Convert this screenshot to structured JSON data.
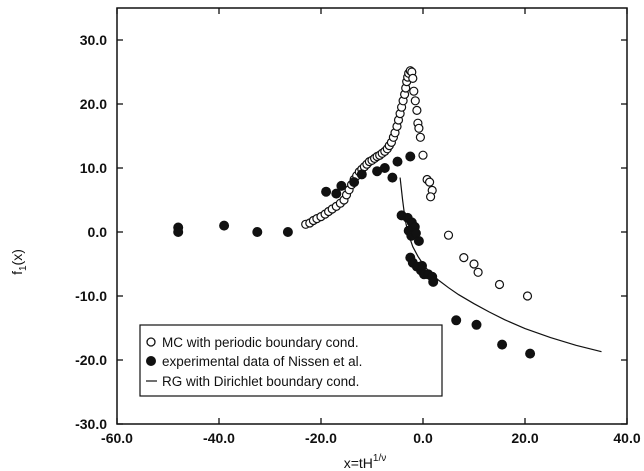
{
  "chart_data": {
    "type": "scatter",
    "xlabel": "x=tH",
    "xlabel_sup": "1/ν",
    "ylabel": "f",
    "ylabel_sub": "1",
    "ylabel_suffix": "(x)",
    "xlim": [
      -60,
      40
    ],
    "ylim": [
      -30,
      35
    ],
    "x_ticks": [
      -60,
      -40,
      -20,
      0,
      20,
      40
    ],
    "x_tick_labels": [
      "-60.0",
      "-40.0",
      "-20.0",
      "0.0",
      "20.0",
      "40.0"
    ],
    "y_ticks": [
      -30,
      -20,
      -10,
      0,
      10,
      20,
      30
    ],
    "y_tick_labels": [
      "-30.0",
      "-20.0",
      "-10.0",
      "0.0",
      "10.0",
      "20.0",
      "30.0"
    ],
    "grid": false,
    "legend_position": "bottom-left",
    "series": [
      {
        "name": "MC with periodic boundary cond.",
        "marker": "open-circle",
        "color": "#111111",
        "points": [
          [
            -23.0,
            1.2
          ],
          [
            -22.2,
            1.4
          ],
          [
            -21.5,
            1.8
          ],
          [
            -20.8,
            2.1
          ],
          [
            -20.0,
            2.4
          ],
          [
            -19.2,
            2.8
          ],
          [
            -18.5,
            3.2
          ],
          [
            -17.8,
            3.6
          ],
          [
            -17.0,
            4.0
          ],
          [
            -16.2,
            4.5
          ],
          [
            -15.5,
            5.0
          ],
          [
            -15.0,
            5.8
          ],
          [
            -14.5,
            6.6
          ],
          [
            -14.0,
            7.4
          ],
          [
            -13.5,
            8.2
          ],
          [
            -13.0,
            8.8
          ],
          [
            -12.5,
            9.4
          ],
          [
            -12.0,
            9.8
          ],
          [
            -11.5,
            10.2
          ],
          [
            -11.0,
            10.6
          ],
          [
            -10.5,
            11.0
          ],
          [
            -10.0,
            11.2
          ],
          [
            -9.5,
            11.5
          ],
          [
            -9.0,
            11.8
          ],
          [
            -8.5,
            12.0
          ],
          [
            -8.0,
            12.3
          ],
          [
            -7.5,
            12.6
          ],
          [
            -7.0,
            13.0
          ],
          [
            -6.6,
            13.5
          ],
          [
            -6.2,
            14.0
          ],
          [
            -5.8,
            14.8
          ],
          [
            -5.5,
            15.5
          ],
          [
            -5.1,
            16.5
          ],
          [
            -4.8,
            17.5
          ],
          [
            -4.5,
            18.5
          ],
          [
            -4.2,
            19.5
          ],
          [
            -3.9,
            20.5
          ],
          [
            -3.6,
            21.5
          ],
          [
            -3.4,
            22.5
          ],
          [
            -3.2,
            23.5
          ],
          [
            -3.0,
            24.2
          ],
          [
            -2.8,
            24.8
          ],
          [
            -2.5,
            25.2
          ],
          [
            -2.2,
            25.0
          ],
          [
            -2.0,
            24.0
          ],
          [
            -1.8,
            22.0
          ],
          [
            -1.5,
            20.5
          ],
          [
            -1.2,
            19.0
          ],
          [
            -1.0,
            17.0
          ],
          [
            -0.8,
            16.2
          ],
          [
            -0.5,
            14.8
          ],
          [
            0.0,
            12.0
          ],
          [
            0.8,
            8.2
          ],
          [
            1.3,
            7.8
          ],
          [
            1.8,
            6.5
          ],
          [
            1.5,
            5.5
          ],
          [
            5.0,
            -0.5
          ],
          [
            8.0,
            -4.0
          ],
          [
            10.0,
            -5.0
          ],
          [
            10.8,
            -6.3
          ],
          [
            15.0,
            -8.2
          ],
          [
            20.5,
            -10.0
          ]
        ]
      },
      {
        "name": "experimental data of Nissen et al.",
        "marker": "filled-circle",
        "color": "#111111",
        "points": [
          [
            -48.0,
            0.7
          ],
          [
            -48.0,
            0.0
          ],
          [
            -39.0,
            1.0
          ],
          [
            -32.5,
            0.0
          ],
          [
            -26.5,
            0.0
          ],
          [
            -19.0,
            6.3
          ],
          [
            -17.0,
            6.0
          ],
          [
            -16.0,
            7.2
          ],
          [
            -13.5,
            7.8
          ],
          [
            -12.0,
            9.0
          ],
          [
            -9.0,
            9.5
          ],
          [
            -7.5,
            10.0
          ],
          [
            -6.0,
            8.5
          ],
          [
            -5.0,
            11.0
          ],
          [
            -2.5,
            11.8
          ],
          [
            -4.2,
            2.6
          ],
          [
            -3.0,
            2.2
          ],
          [
            -2.2,
            1.5
          ],
          [
            -1.6,
            0.8
          ],
          [
            -2.8,
            0.2
          ],
          [
            -2.3,
            -0.6
          ],
          [
            -1.4,
            -0.2
          ],
          [
            -0.8,
            -1.4
          ],
          [
            -2.5,
            -4.0
          ],
          [
            -2.0,
            -4.8
          ],
          [
            -1.2,
            -5.4
          ],
          [
            -0.4,
            -6.0
          ],
          [
            0.2,
            -6.6
          ],
          [
            1.0,
            -6.6
          ],
          [
            1.8,
            -7.0
          ],
          [
            2.0,
            -7.8
          ],
          [
            -0.2,
            -5.3
          ],
          [
            6.5,
            -13.8
          ],
          [
            10.5,
            -14.5
          ],
          [
            15.5,
            -17.6
          ],
          [
            21.0,
            -19.0
          ]
        ]
      },
      {
        "name": "RG with Dirichlet boundary cond.",
        "marker": "line",
        "color": "#111111",
        "points": [
          [
            -4.5,
            8.5
          ],
          [
            -4.0,
            5.0
          ],
          [
            -3.5,
            2.0
          ],
          [
            -3.0,
            0.0
          ],
          [
            -2.0,
            -2.3
          ],
          [
            -1.0,
            -3.8
          ],
          [
            0.0,
            -5.0
          ],
          [
            1.0,
            -6.0
          ],
          [
            2.0,
            -6.8
          ],
          [
            3.0,
            -7.5
          ],
          [
            5.0,
            -8.7
          ],
          [
            7.0,
            -9.8
          ],
          [
            10.0,
            -11.2
          ],
          [
            13.0,
            -12.5
          ],
          [
            16.0,
            -13.7
          ],
          [
            20.0,
            -15.1
          ],
          [
            25.0,
            -16.5
          ],
          [
            30.0,
            -17.7
          ],
          [
            35.0,
            -18.7
          ]
        ]
      }
    ]
  }
}
